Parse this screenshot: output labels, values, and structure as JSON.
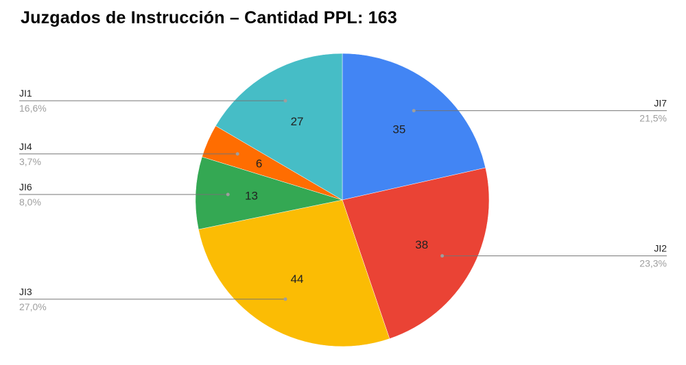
{
  "chart_data": {
    "type": "pie",
    "title": "Juzgados de Instrucción – Cantidad PPL: 163",
    "slices": [
      {
        "name": "JI7",
        "value": 35,
        "percent": "21,5%",
        "color": "#4285F4",
        "side": "right"
      },
      {
        "name": "JI2",
        "value": 38,
        "percent": "23,3%",
        "color": "#EA4335",
        "side": "right"
      },
      {
        "name": "JI3",
        "value": 44,
        "percent": "27,0%",
        "color": "#FBBC04",
        "side": "left"
      },
      {
        "name": "JI6",
        "value": 13,
        "percent": "8,0%",
        "color": "#34A853",
        "side": "left"
      },
      {
        "name": "JI4",
        "value": 6,
        "percent": "3,7%",
        "color": "#FF6D01",
        "side": "left"
      },
      {
        "name": "JI1",
        "value": 27,
        "percent": "16,6%",
        "color": "#46BDC6",
        "side": "left"
      }
    ],
    "start_angle": "top",
    "direction": "clockwise",
    "legend": "none",
    "label_style": "callout lines with name and percent"
  }
}
